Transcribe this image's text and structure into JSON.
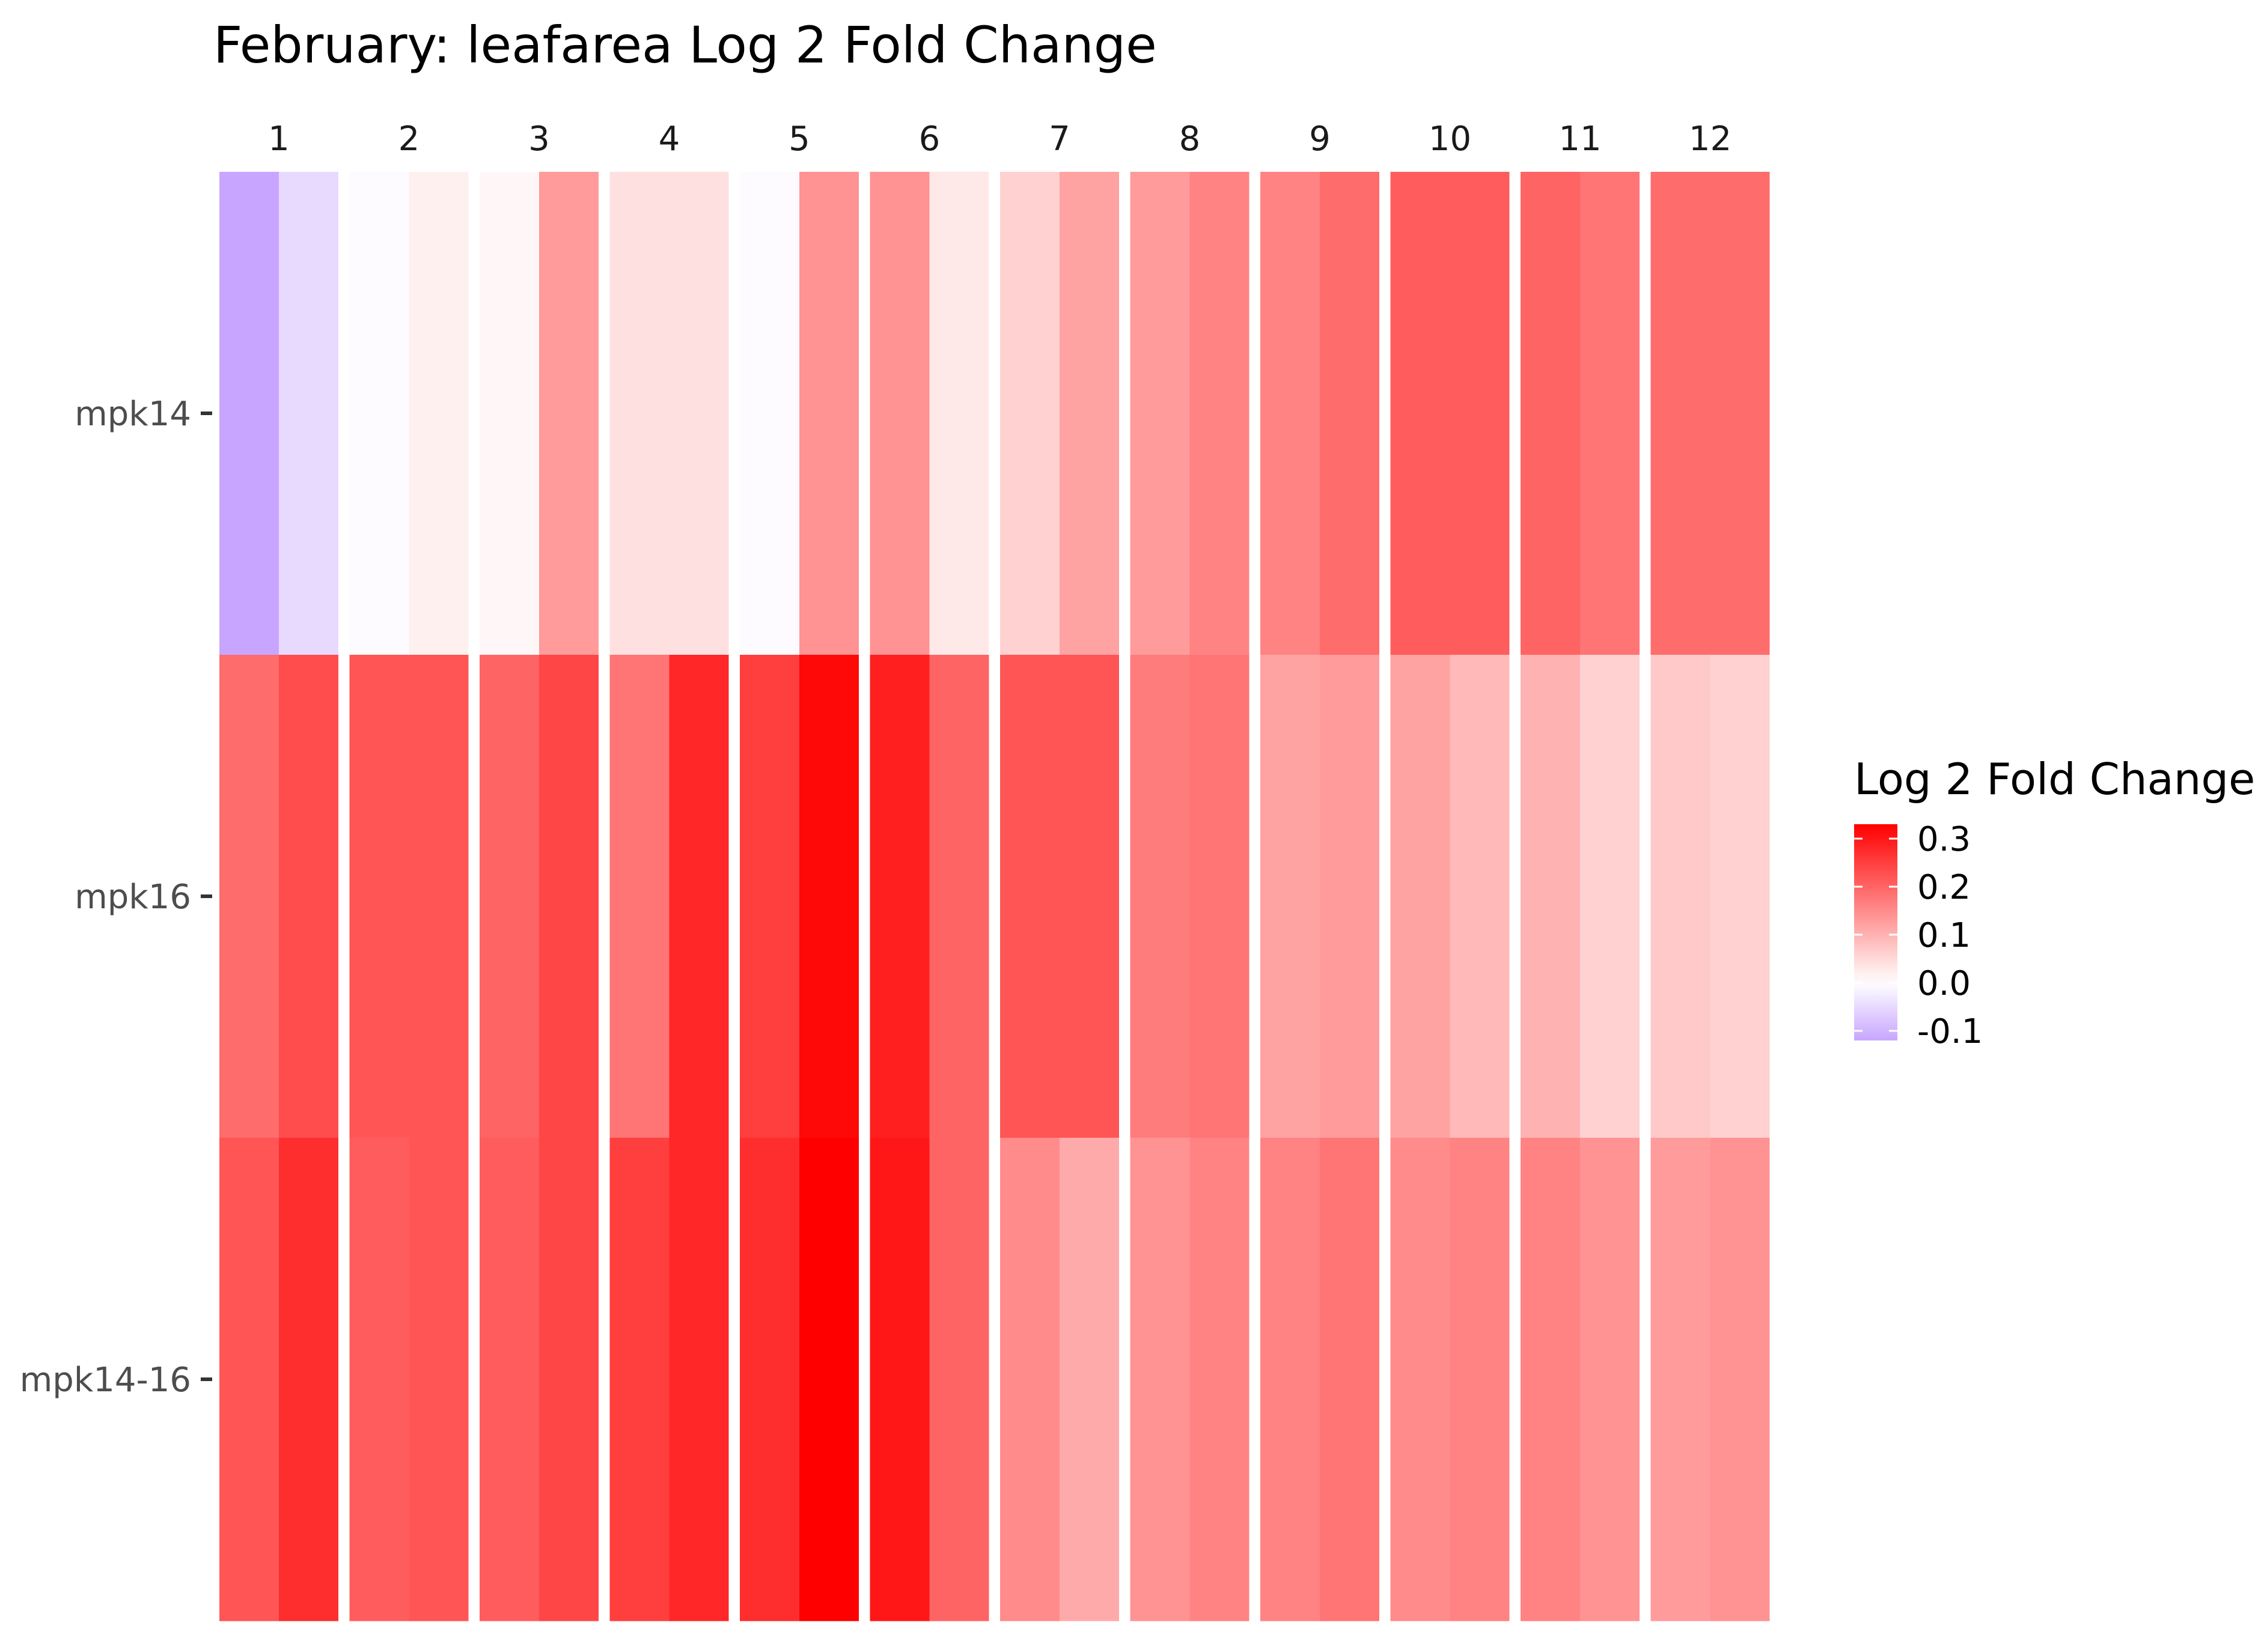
{
  "chart_data": {
    "type": "heatmap",
    "title": "February: leafarea Log 2 Fold Change",
    "xlabel": "",
    "ylabel": "",
    "columns": [
      "1",
      "2",
      "3",
      "4",
      "5",
      "6",
      "7",
      "8",
      "9",
      "10",
      "11",
      "12"
    ],
    "rows": [
      "mpk14",
      "mpk16",
      "mpk14-16"
    ],
    "subcells_per_column": 2,
    "values": [
      [
        [
          -0.12,
          -0.05
        ],
        [
          -0.005,
          0.02
        ],
        [
          0.01,
          0.13
        ],
        [
          0.04,
          0.04
        ],
        [
          -0.005,
          0.14
        ],
        [
          0.14,
          0.03
        ],
        [
          0.06,
          0.12
        ],
        [
          0.13,
          0.16
        ],
        [
          0.16,
          0.19
        ],
        [
          0.21,
          0.21
        ],
        [
          0.2,
          0.18
        ],
        [
          0.19,
          0.19
        ]
      ],
      [
        [
          0.19,
          0.23
        ],
        [
          0.22,
          0.22
        ],
        [
          0.2,
          0.24
        ],
        [
          0.18,
          0.28
        ],
        [
          0.25,
          0.32
        ],
        [
          0.29,
          0.2
        ],
        [
          0.22,
          0.22
        ],
        [
          0.17,
          0.18
        ],
        [
          0.12,
          0.13
        ],
        [
          0.12,
          0.09
        ],
        [
          0.1,
          0.06
        ],
        [
          0.07,
          0.06
        ]
      ],
      [
        [
          0.22,
          0.27
        ],
        [
          0.21,
          0.22
        ],
        [
          0.21,
          0.24
        ],
        [
          0.25,
          0.28
        ],
        [
          0.27,
          0.33
        ],
        [
          0.3,
          0.2
        ],
        [
          0.15,
          0.11
        ],
        [
          0.14,
          0.16
        ],
        [
          0.16,
          0.18
        ],
        [
          0.15,
          0.16
        ],
        [
          0.16,
          0.14
        ],
        [
          0.13,
          0.14
        ]
      ]
    ],
    "colorscale": {
      "low_color": "#c8a6ff",
      "mid_color": "#ffffff",
      "high_color": "#ff0000",
      "midpoint": 0.0,
      "range": [
        -0.12,
        0.33
      ]
    },
    "legend": {
      "title": "Log 2 Fold Change",
      "ticks": [
        0.3,
        0.2,
        0.1,
        0.0,
        -0.1
      ],
      "tick_labels": [
        "0.3",
        "0.2",
        "0.1",
        "0.0",
        "-0.1"
      ],
      "placement": "right"
    },
    "grid": false
  }
}
